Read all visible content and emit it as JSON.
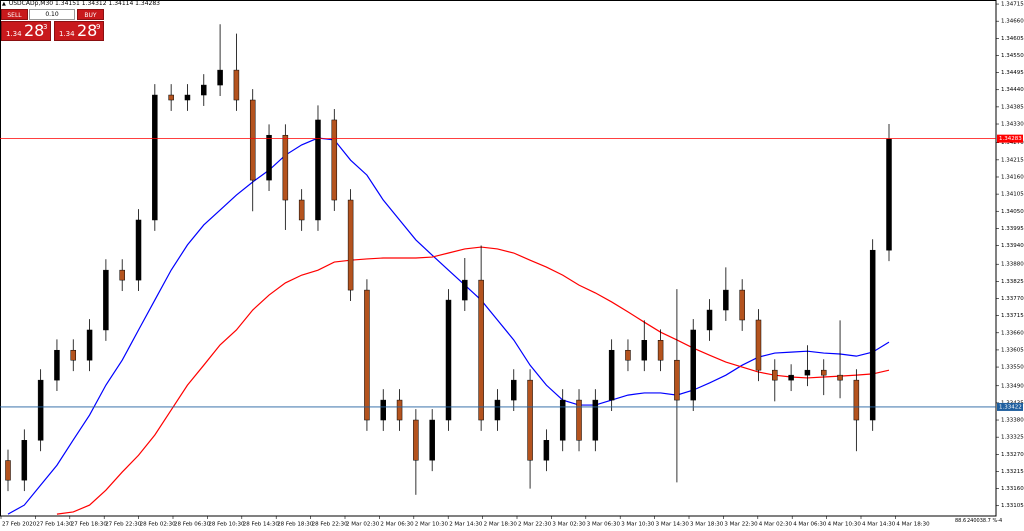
{
  "header": "USDCADp,M30 1.34151 1.34312 1.34114 1.34283",
  "trade_panel": {
    "sell": "SELL",
    "buy": "BUY",
    "lot": "0.10",
    "sell_price": {
      "small": "1.34",
      "big": "28",
      "sup": "3"
    },
    "buy_price": {
      "small": "1.34",
      "big": "28",
      "sup": "9"
    }
  },
  "footer": [
    "88.6",
    "240038.7 %-4"
  ],
  "chart_data": {
    "type": "candlestick",
    "up_color": "#000000",
    "down_color": "#b4531e",
    "ylim": [
      1.33072,
      1.34728
    ],
    "yticks": [
      1.34715,
      {
        "value": 1.3466,
        "label": "1.34660"
      },
      1.34605,
      {
        "value": 1.3455,
        "label": "1.34550"
      },
      1.34495,
      {
        "value": 1.3444,
        "label": "1.34440"
      },
      1.34385,
      {
        "value": 1.3433,
        "label": "1.34330"
      },
      {
        "value": 1.3427,
        "label": "1.34270"
      },
      1.34215,
      {
        "value": 1.3416,
        "label": "1.34160"
      },
      1.34105,
      {
        "value": 1.3405,
        "label": "1.34050"
      },
      1.33995,
      {
        "value": 1.3394,
        "label": "1.33940"
      },
      {
        "value": 1.3388,
        "label": "1.33880"
      },
      1.33825,
      {
        "value": 1.3377,
        "label": "1.33770"
      },
      1.33715,
      {
        "value": 1.3366,
        "label": "1.33660"
      },
      1.33605,
      {
        "value": 1.3355,
        "label": "1.33550"
      },
      {
        "value": 1.3349,
        "label": "1.33490"
      },
      1.33435,
      {
        "value": 1.3338,
        "label": "1.33380"
      },
      1.33325,
      {
        "value": 1.3327,
        "label": "1.33270"
      },
      1.33215,
      {
        "value": 1.3316,
        "label": "1.33160"
      },
      1.33105
    ],
    "x_labels": [
      "27 Feb 2020",
      "27 Feb 14:30",
      "27 Feb 18:30",
      "27 Feb 22:30",
      "28 Feb 02:30",
      "28 Feb 06:30",
      "28 Feb 10:30",
      "28 Feb 14:30",
      "28 Feb 18:30",
      "28 Feb 22:30",
      "2 Mar 02:30",
      "2 Mar 06:30",
      "2 Mar 10:30",
      "2 Mar 14:30",
      "2 Mar 18:30",
      "2 Mar 22:30",
      "3 Mar 02:30",
      "3 Mar 06:30",
      "3 Mar 10:30",
      "3 Mar 14:30",
      "3 Mar 18:30",
      "3 Mar 22:30",
      "4 Mar 02:30",
      "4 Mar 06:30",
      "4 Mar 10:30",
      "4 Mar 14:30",
      "4 Mar 18:30"
    ],
    "open": [
      1.3325,
      1.33187,
      1.33315,
      1.33508,
      1.33604,
      1.33572,
      1.33669,
      1.33861,
      1.33829,
      1.34022,
      1.34423,
      1.34407,
      1.34423,
      1.34455,
      1.34503,
      1.34407,
      1.3415,
      1.34294,
      1.34086,
      1.34022,
      1.34343,
      1.34086,
      1.33797,
      1.3338,
      1.33444,
      1.3338,
      1.33251,
      1.3338,
      1.33765,
      1.33829,
      1.3338,
      1.33444,
      1.33508,
      1.33251,
      1.33315,
      1.33444,
      1.33315,
      1.33444,
      1.33604,
      1.33572,
      1.33636,
      1.33572,
      1.33444,
      1.33669,
      1.33733,
      1.33797,
      1.33701,
      1.3354,
      1.33508,
      1.33524,
      1.3354,
      1.33524,
      1.33508,
      1.3338,
      1.33925
    ],
    "high": [
      1.33285,
      1.3335,
      1.33543,
      1.33639,
      1.33639,
      1.33704,
      1.33896,
      1.33896,
      1.34057,
      1.34458,
      1.34458,
      1.34458,
      1.3449,
      1.3465,
      1.3462,
      1.34442,
      1.34329,
      1.34329,
      1.34121,
      1.3439,
      1.34378,
      1.34121,
      1.33832,
      1.33479,
      1.33479,
      1.33415,
      1.33415,
      1.338,
      1.339,
      1.3394,
      1.33479,
      1.33543,
      1.33543,
      1.3335,
      1.33479,
      1.33479,
      1.33479,
      1.33639,
      1.33639,
      1.337,
      1.33671,
      1.338,
      1.33704,
      1.33768,
      1.3387,
      1.33832,
      1.33736,
      1.33575,
      1.33559,
      1.3362,
      1.33575,
      1.337,
      1.33543,
      1.3396,
      1.3433
    ],
    "low": [
      1.33152,
      1.33152,
      1.3328,
      1.33473,
      1.33537,
      1.33537,
      1.33634,
      1.33794,
      1.33794,
      1.33987,
      1.34372,
      1.34372,
      1.34388,
      1.3442,
      1.34372,
      1.3405,
      1.34115,
      1.3399,
      1.33987,
      1.33987,
      1.34051,
      1.33762,
      1.33345,
      1.33345,
      1.33345,
      1.3314,
      1.33216,
      1.33345,
      1.3373,
      1.33345,
      1.33345,
      1.33409,
      1.3316,
      1.33216,
      1.3328,
      1.3328,
      1.3328,
      1.33409,
      1.33537,
      1.33537,
      1.33537,
      1.3318,
      1.33409,
      1.33634,
      1.33698,
      1.33666,
      1.33505,
      1.3344,
      1.33473,
      1.33489,
      1.3346,
      1.3345,
      1.3328,
      1.33345,
      1.3389
    ],
    "close": [
      1.33187,
      1.33315,
      1.33508,
      1.33604,
      1.33572,
      1.33669,
      1.33861,
      1.33829,
      1.34022,
      1.34423,
      1.34407,
      1.34423,
      1.34455,
      1.34503,
      1.34407,
      1.3415,
      1.34294,
      1.34086,
      1.34022,
      1.34343,
      1.34086,
      1.33797,
      1.3338,
      1.33444,
      1.3338,
      1.33251,
      1.3338,
      1.33765,
      1.33829,
      1.3338,
      1.33444,
      1.33508,
      1.33251,
      1.33315,
      1.33444,
      1.33315,
      1.33444,
      1.33604,
      1.33572,
      1.33636,
      1.33572,
      1.33444,
      1.33669,
      1.33733,
      1.33797,
      1.33701,
      1.3354,
      1.33508,
      1.33524,
      1.3354,
      1.33524,
      1.33508,
      1.3338,
      1.33925,
      1.34283
    ],
    "ma_lines": [
      {
        "color": "#0000ff",
        "values": [
          1.33078,
          1.33107,
          1.33171,
          1.33235,
          1.33316,
          1.33396,
          1.33492,
          1.33572,
          1.33669,
          1.33765,
          1.33861,
          1.33942,
          1.34006,
          1.34054,
          1.34102,
          1.34144,
          1.34182,
          1.3423,
          1.34263,
          1.34285,
          1.34279,
          1.34214,
          1.34166,
          1.34086,
          1.34022,
          1.33958,
          1.33909,
          1.33861,
          1.33813,
          1.33765,
          1.33701,
          1.33637,
          1.33556,
          1.33492,
          1.33444,
          1.33428,
          1.33428,
          1.33444,
          1.3346,
          1.33467,
          1.33467,
          1.3346,
          1.33476,
          1.33499,
          1.33524,
          1.33556,
          1.33582,
          1.33595,
          1.33598,
          1.33601,
          1.33595,
          1.33592,
          1.33585,
          1.33598,
          1.3363
        ]
      },
      {
        "color": "#ff0000",
        "values": [
          null,
          null,
          null,
          1.33078,
          1.33085,
          1.33107,
          1.33155,
          1.33213,
          1.33267,
          1.33332,
          1.33412,
          1.33492,
          1.33556,
          1.33621,
          1.33669,
          1.33733,
          1.33781,
          1.3382,
          1.33845,
          1.33861,
          1.33887,
          1.33893,
          1.33897,
          1.339,
          1.339,
          1.339,
          1.33903,
          1.33916,
          1.33929,
          1.33935,
          1.33929,
          1.33916,
          1.33893,
          1.33871,
          1.33845,
          1.33813,
          1.33788,
          1.33759,
          1.33727,
          1.33694,
          1.33662,
          1.33637,
          1.33611,
          1.33588,
          1.33566,
          1.3355,
          1.33534,
          1.33524,
          1.33518,
          1.33515,
          1.33518,
          1.33521,
          1.33524,
          1.33528,
          1.3354
        ]
      }
    ],
    "price_lines": [
      {
        "value": 1.34283,
        "color": "#ff0000"
      },
      {
        "value": 1.33422,
        "color": "#1f5f9f"
      }
    ]
  }
}
